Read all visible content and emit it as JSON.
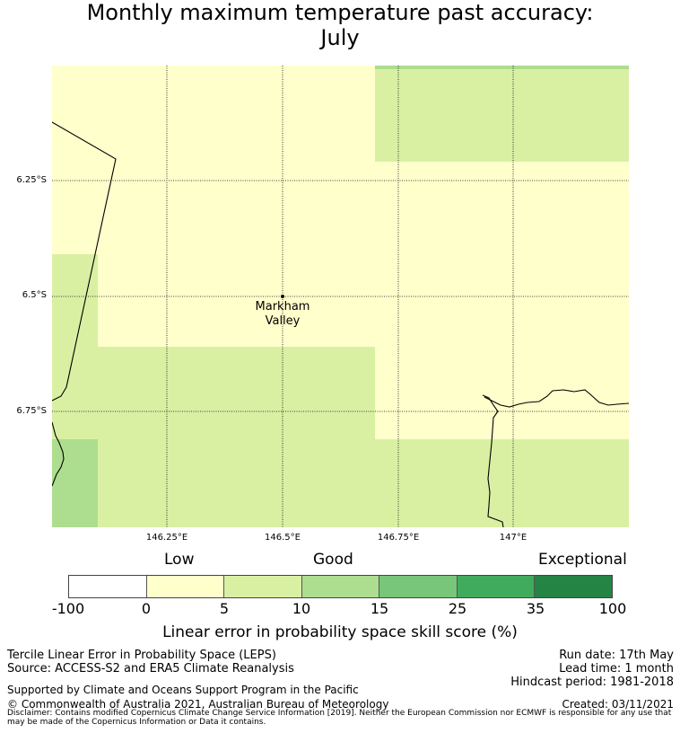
{
  "title_line1": "Monthly maximum temperature past accuracy:",
  "title_line2": "July",
  "map": {
    "place_label_line1": "Markham",
    "place_label_line2": "Valley",
    "lat_labels": [
      "6.25°S",
      "6.5°S",
      "6.75°S"
    ],
    "lon_labels": [
      "146.25°E",
      "146.5°E",
      "146.75°E",
      "147°E"
    ],
    "colors": {
      "pale_yellow": "#ffffcc",
      "light_green": "#d9f0a3",
      "mid_green": "#addd8e"
    }
  },
  "colorbar": {
    "category_low": "Low",
    "category_good": "Good",
    "category_exceptional": "Exceptional",
    "ticks": [
      "-100",
      "0",
      "5",
      "10",
      "15",
      "25",
      "35",
      "100"
    ],
    "colors": [
      "#ffffff",
      "#ffffcc",
      "#d9f0a3",
      "#addd8e",
      "#78c679",
      "#41ab5d",
      "#238443"
    ],
    "label": "Linear error in probability space skill score (%)"
  },
  "footer": {
    "line1": "Tercile Linear Error in Probability Space (LEPS)",
    "line2": "Source: ACCESS-S2 and ERA5 Climate Reanalysis",
    "run_date": "Run date: 17th May",
    "lead_time": "Lead time: 1 month",
    "hindcast": "Hindcast period: 1981-2018",
    "supported": "Supported by Climate and Oceans Support Program in the Pacific",
    "copyright": "© Commonwealth of Australia 2021, Australian Bureau of Meteorology",
    "created": "Created: 03/11/2021",
    "disclaimer": "Disclaimer: Contains modified Copernicus Climate Change Service Information [2019]. Neither the European Commission nor ECMWF is responsible for any use that may be made of the Copernicus Information or Data it contains."
  }
}
